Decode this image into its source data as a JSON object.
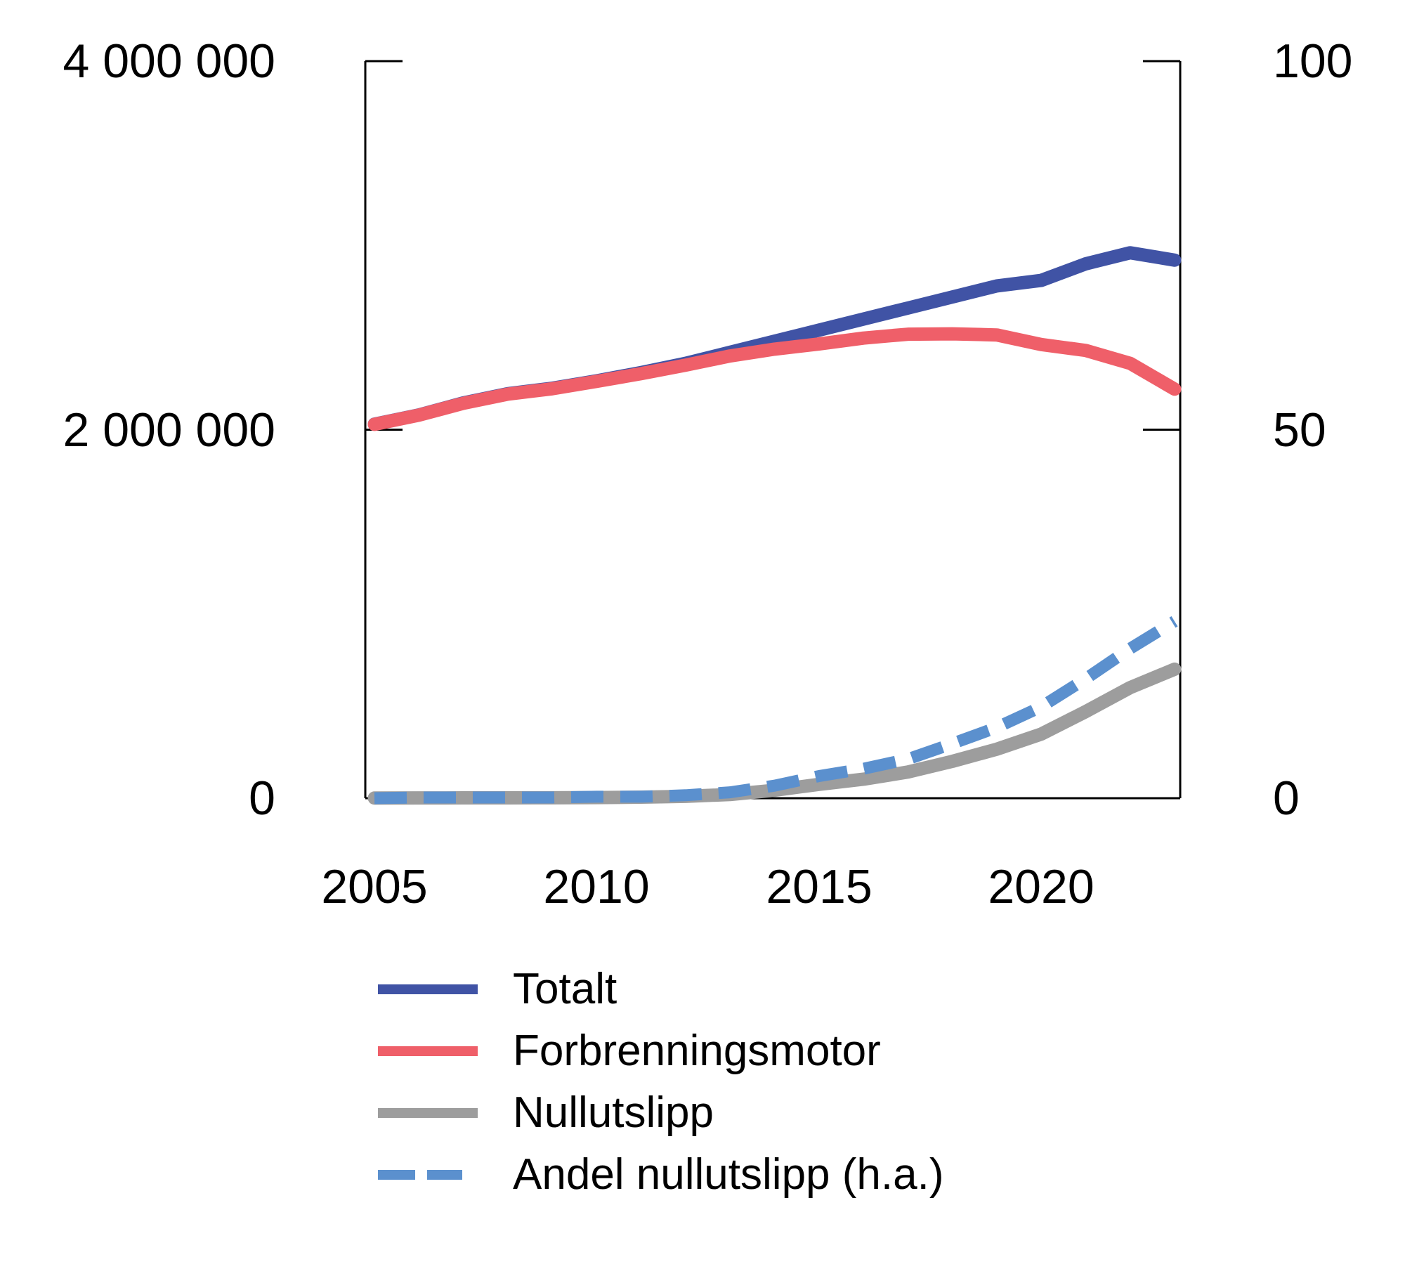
{
  "chart_data": {
    "type": "line",
    "title": "",
    "grid": false,
    "legend_position": "bottom-left",
    "x": [
      2005,
      2006,
      2007,
      2008,
      2009,
      2010,
      2011,
      2012,
      2013,
      2014,
      2015,
      2016,
      2017,
      2018,
      2019,
      2020,
      2021,
      2022,
      2023
    ],
    "axes": {
      "left": {
        "range": [
          0,
          4000000
        ],
        "ticks": [
          {
            "value": 4000000,
            "label": "4 000 000"
          },
          {
            "value": 2000000,
            "label": "2 000 000"
          },
          {
            "value": 0,
            "label": "0"
          }
        ]
      },
      "right": {
        "range": [
          0,
          100
        ],
        "ticks": [
          {
            "value": 100,
            "label": "100"
          },
          {
            "value": 50,
            "label": "50"
          },
          {
            "value": 0,
            "label": "0"
          }
        ]
      },
      "x": {
        "range": [
          2005,
          2023
        ],
        "ticks": [
          {
            "value": 2005,
            "label": "2005"
          },
          {
            "value": 2010,
            "label": "2010"
          },
          {
            "value": 2015,
            "label": "2015"
          },
          {
            "value": 2020,
            "label": "2020"
          }
        ]
      }
    },
    "series": [
      {
        "name": "Totalt",
        "axis": "left",
        "color": "#4053a5",
        "style": "solid",
        "values": [
          2030000,
          2080000,
          2145000,
          2195000,
          2225000,
          2265000,
          2310000,
          2360000,
          2420000,
          2480000,
          2540000,
          2600000,
          2660000,
          2720000,
          2780000,
          2810000,
          2900000,
          2960000,
          2920000
        ]
      },
      {
        "name": "Forbrenningsmotor",
        "axis": "left",
        "color": "#ef5f69",
        "style": "solid",
        "values": [
          2029000,
          2079000,
          2143000,
          2193000,
          2222000,
          2262000,
          2304000,
          2350000,
          2400000,
          2437000,
          2465000,
          2497000,
          2518000,
          2520000,
          2514000,
          2462000,
          2430000,
          2360000,
          2220000
        ]
      },
      {
        "name": "Nullutslipp",
        "axis": "left",
        "color": "#9d9d9d",
        "style": "solid",
        "values": [
          1000,
          1300,
          1700,
          2100,
          2600,
          3400,
          5700,
          10000,
          20000,
          43000,
          75000,
          103000,
          142000,
          200000,
          266000,
          348000,
          470000,
          600000,
          700000
        ]
      },
      {
        "name": "Andel nullutslipp (h.a.)",
        "axis": "right",
        "color": "#5b90ce",
        "style": "dashed",
        "values": [
          0.0,
          0.1,
          0.1,
          0.1,
          0.1,
          0.2,
          0.2,
          0.4,
          0.8,
          1.7,
          3.0,
          4.0,
          5.3,
          7.4,
          9.6,
          12.4,
          16.2,
          20.3,
          24.0
        ]
      }
    ]
  }
}
